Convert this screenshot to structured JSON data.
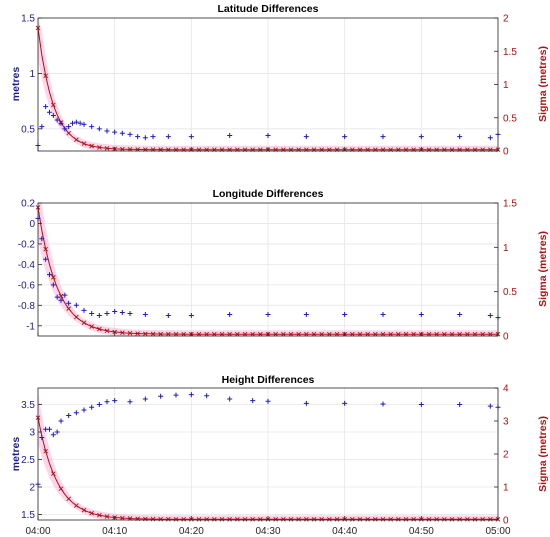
{
  "colors": {
    "left_series": "#1a1acc",
    "right_series": "#b01010",
    "right_band": "#ffb3dd",
    "left_axis": "#1a1a99",
    "right_axis": "#b01010",
    "grid": "#e6e6e6",
    "frame": "#262626"
  },
  "chart_data": [
    {
      "type": "scatter",
      "title": "Latitude Differences",
      "xlabel": "",
      "ylabel": "metres",
      "ylabel_right": "Sigma (metres)",
      "xlim": [
        "04:00",
        "05:00"
      ],
      "xticks": [
        "04:00",
        "04:10",
        "04:20",
        "04:30",
        "04:40",
        "04:50",
        "05:00"
      ],
      "ylim": [
        0.3,
        1.5
      ],
      "yticks": [
        "0.5",
        "1",
        "1.5"
      ],
      "ylim_right": [
        0,
        2
      ],
      "yticks_right": [
        "0",
        "0.5",
        "1",
        "1.5",
        "2"
      ],
      "grid": true,
      "series": [
        {
          "axis": "left",
          "style": "blue plus markers",
          "x": [
            "04:00",
            "04:00:30",
            "04:01",
            "04:01:30",
            "04:02",
            "04:02:30",
            "04:03",
            "04:03:30",
            "04:04",
            "04:04:30",
            "04:05",
            "04:05:30",
            "04:06",
            "04:07",
            "04:08",
            "04:09",
            "04:10",
            "04:11",
            "04:12",
            "04:13",
            "04:14",
            "04:15",
            "04:17",
            "04:20",
            "04:25",
            "04:30",
            "04:35",
            "04:40",
            "04:45",
            "04:50",
            "04:55",
            "04:59",
            "05:00"
          ],
          "y": [
            0.35,
            0.52,
            0.7,
            0.65,
            0.62,
            0.58,
            0.55,
            0.5,
            0.52,
            0.55,
            0.56,
            0.55,
            0.54,
            0.52,
            0.5,
            0.48,
            0.47,
            0.46,
            0.45,
            0.43,
            0.42,
            0.43,
            0.43,
            0.43,
            0.44,
            0.44,
            0.43,
            0.43,
            0.43,
            0.43,
            0.43,
            0.42,
            0.45
          ]
        },
        {
          "axis": "right",
          "style": "red curve with x markers and pink band",
          "decay": {
            "start": 1.85,
            "floor": 0.02,
            "tau_minutes": 2.0
          }
        }
      ]
    },
    {
      "type": "scatter",
      "title": "Longitude Differences",
      "xlabel": "",
      "ylabel": "",
      "ylabel_right": "Sigma (metres)",
      "xlim": [
        "04:00",
        "05:00"
      ],
      "xticks": [
        "04:00",
        "04:10",
        "04:20",
        "04:30",
        "04:40",
        "04:50",
        "05:00"
      ],
      "ylim": [
        -1.1,
        0.2
      ],
      "yticks": [
        "-1",
        "-0.8",
        "-0.6",
        "-0.4",
        "-0.2",
        "0",
        "0.2"
      ],
      "ylim_right": [
        0,
        1.5
      ],
      "yticks_right": [
        "0",
        "0.5",
        "1",
        "1.5"
      ],
      "grid": true,
      "series": [
        {
          "axis": "left",
          "style": "blue plus markers",
          "x": [
            "04:00",
            "04:00:30",
            "04:01",
            "04:01:30",
            "04:02",
            "04:02:30",
            "04:03",
            "04:03:30",
            "04:04",
            "04:05",
            "04:06",
            "04:07",
            "04:08",
            "04:09",
            "04:10",
            "04:11",
            "04:12",
            "04:14",
            "04:17",
            "04:20",
            "04:25",
            "04:30",
            "04:35",
            "04:40",
            "04:45",
            "04:50",
            "04:55",
            "04:59",
            "05:00"
          ],
          "y": [
            0.05,
            -0.15,
            -0.35,
            -0.5,
            -0.6,
            -0.72,
            -0.75,
            -0.7,
            -0.78,
            -0.8,
            -0.85,
            -0.88,
            -0.9,
            -0.88,
            -0.86,
            -0.87,
            -0.88,
            -0.89,
            -0.9,
            -0.9,
            -0.89,
            -0.89,
            -0.89,
            -0.89,
            -0.89,
            -0.89,
            -0.89,
            -0.9,
            -0.92
          ]
        },
        {
          "axis": "right",
          "style": "red curve with x markers and pink band",
          "decay": {
            "start": 1.45,
            "floor": 0.02,
            "tau_minutes": 2.5
          }
        }
      ]
    },
    {
      "type": "scatter",
      "title": "Height Differences",
      "xlabel": "",
      "ylabel": "metres",
      "ylabel_right": "Sigma (metres)",
      "xlim": [
        "04:00",
        "05:00"
      ],
      "xticks": [
        "04:00",
        "04:10",
        "04:20",
        "04:30",
        "04:40",
        "04:50",
        "05:00"
      ],
      "ylim": [
        1.4,
        3.8
      ],
      "yticks": [
        "1.5",
        "2",
        "2.5",
        "3",
        "3.5"
      ],
      "ylim_right": [
        0,
        4
      ],
      "yticks_right": [
        "0",
        "1",
        "2",
        "3",
        "4"
      ],
      "grid": true,
      "series": [
        {
          "axis": "left",
          "style": "blue plus markers",
          "x": [
            "04:00",
            "04:00:30",
            "04:01",
            "04:01:30",
            "04:02",
            "04:02:30",
            "04:03",
            "04:04",
            "04:05",
            "04:06",
            "04:07",
            "04:08",
            "04:09",
            "04:10",
            "04:12",
            "04:14",
            "04:16",
            "04:18",
            "04:20",
            "04:22",
            "04:25",
            "04:28",
            "04:30",
            "04:35",
            "04:40",
            "04:45",
            "04:50",
            "04:55",
            "04:59",
            "05:00"
          ],
          "y": [
            2.05,
            2.9,
            3.05,
            3.05,
            2.95,
            3.0,
            3.2,
            3.3,
            3.35,
            3.4,
            3.45,
            3.5,
            3.55,
            3.57,
            3.55,
            3.6,
            3.65,
            3.67,
            3.68,
            3.66,
            3.6,
            3.57,
            3.56,
            3.52,
            3.52,
            3.51,
            3.5,
            3.5,
            3.47,
            3.45
          ]
        },
        {
          "axis": "right",
          "style": "red curve with x markers and pink band",
          "decay": {
            "start": 3.1,
            "floor": 0.02,
            "tau_minutes": 2.5
          }
        }
      ]
    }
  ]
}
